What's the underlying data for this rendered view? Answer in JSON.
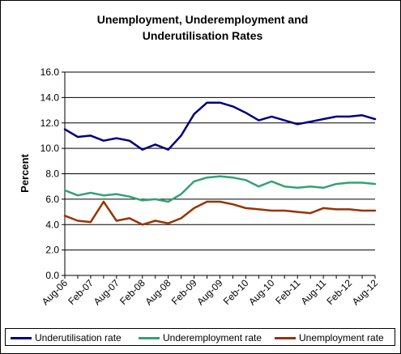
{
  "chart_data": {
    "type": "line",
    "title": [
      "Unemployment, Underemployment and",
      "Underutilisation Rates"
    ],
    "xlabel": "",
    "ylabel": "Percent",
    "ylim": [
      0,
      16
    ],
    "yticks": [
      "0.0",
      "2.0",
      "4.0",
      "6.0",
      "8.0",
      "10.0",
      "12.0",
      "14.0",
      "16.0"
    ],
    "xticks": [
      "Aug-06",
      "Feb-07",
      "Aug-07",
      "Feb-08",
      "Aug-08",
      "Feb-09",
      "Aug-09",
      "Feb-10",
      "Aug-10",
      "Feb-11",
      "Aug-11",
      "Feb-12",
      "Aug-12"
    ],
    "x": [
      "Aug-06",
      "Nov-06",
      "Feb-07",
      "May-07",
      "Aug-07",
      "Nov-07",
      "Feb-08",
      "May-08",
      "Aug-08",
      "Nov-08",
      "Feb-09",
      "May-09",
      "Aug-09",
      "Nov-09",
      "Feb-10",
      "May-10",
      "Aug-10",
      "Nov-10",
      "Feb-11",
      "May-11",
      "Aug-11",
      "Nov-11",
      "Feb-12",
      "May-12",
      "Aug-12"
    ],
    "grid": "horizontal",
    "legend": "bottom",
    "series": [
      {
        "name": "Underutilisation rate",
        "color": "#000080",
        "values": [
          11.5,
          10.9,
          11.0,
          10.6,
          10.8,
          10.6,
          9.9,
          10.3,
          9.9,
          11.0,
          12.7,
          13.6,
          13.6,
          13.3,
          12.8,
          12.2,
          12.5,
          12.2,
          11.9,
          12.1,
          12.3,
          12.5,
          12.5,
          12.6,
          12.3
        ]
      },
      {
        "name": "Underemployment rate",
        "color": "#33a177",
        "values": [
          6.7,
          6.3,
          6.5,
          6.3,
          6.4,
          6.2,
          5.9,
          6.0,
          5.8,
          6.4,
          7.4,
          7.7,
          7.8,
          7.7,
          7.5,
          7.0,
          7.4,
          7.0,
          6.9,
          7.0,
          6.9,
          7.2,
          7.3,
          7.3,
          7.2
        ]
      },
      {
        "name": "Unemployment rate",
        "color": "#993300",
        "values": [
          4.7,
          4.3,
          4.2,
          5.8,
          4.3,
          4.5,
          4.0,
          4.3,
          4.1,
          4.5,
          5.3,
          5.8,
          5.8,
          5.6,
          5.3,
          5.2,
          5.1,
          5.1,
          5.0,
          4.9,
          5.3,
          5.2,
          5.2,
          5.1,
          5.1
        ]
      }
    ]
  }
}
